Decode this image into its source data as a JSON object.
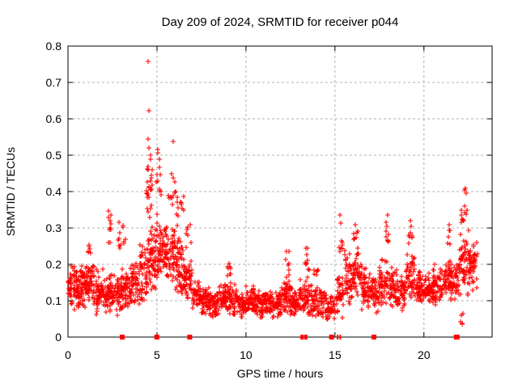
{
  "window": {
    "title": "Day 209 of 2024, SRMTID for receiver p044"
  },
  "chart_data": {
    "type": "scatter",
    "title": "Day 209 of 2024, SRMTID for receiver p044",
    "xlabel": "GPS time / hours",
    "ylabel": "SRMTID / TECUs",
    "xlim": [
      0,
      23.83
    ],
    "ylim": [
      0,
      0.8
    ],
    "x_ticks": [
      0,
      5,
      10,
      15,
      20
    ],
    "x_tick_labels": [
      "0",
      "5",
      "10",
      "15",
      "20"
    ],
    "y_ticks": [
      0,
      0.1,
      0.2,
      0.3,
      0.4,
      0.5,
      0.6,
      0.7,
      0.8
    ],
    "y_tick_labels": [
      "0",
      "0.1",
      "0.2",
      "0.3",
      "0.4",
      "0.5",
      "0.6",
      "0.7",
      "0.8"
    ],
    "grid": true,
    "legend_position": "none",
    "marker": "plus",
    "marker_color": "#ff0000",
    "axis_color": "#000000",
    "grid_color": "#b0b0b0",
    "background": "#ffffff",
    "series_name": "SRMTID",
    "dense_bands": [
      [
        0.0,
        0.5,
        0.07,
        0.2,
        60
      ],
      [
        0.5,
        1.0,
        0.06,
        0.2,
        60
      ],
      [
        1.0,
        1.5,
        0.07,
        0.22,
        60
      ],
      [
        1.5,
        2.0,
        0.06,
        0.19,
        55
      ],
      [
        2.0,
        2.5,
        0.06,
        0.18,
        55
      ],
      [
        2.5,
        3.0,
        0.05,
        0.17,
        50
      ],
      [
        3.0,
        3.5,
        0.07,
        0.2,
        55
      ],
      [
        3.5,
        4.0,
        0.08,
        0.22,
        55
      ],
      [
        4.0,
        4.5,
        0.09,
        0.26,
        55
      ],
      [
        4.5,
        5.0,
        0.1,
        0.35,
        60
      ],
      [
        5.0,
        5.5,
        0.13,
        0.34,
        60
      ],
      [
        5.5,
        6.0,
        0.14,
        0.32,
        60
      ],
      [
        6.0,
        6.5,
        0.1,
        0.28,
        55
      ],
      [
        6.5,
        7.0,
        0.09,
        0.22,
        50
      ],
      [
        7.0,
        7.5,
        0.07,
        0.16,
        50
      ],
      [
        7.5,
        8.0,
        0.06,
        0.14,
        50
      ],
      [
        8.0,
        8.5,
        0.05,
        0.13,
        50
      ],
      [
        8.5,
        9.0,
        0.06,
        0.15,
        50
      ],
      [
        9.0,
        9.5,
        0.05,
        0.16,
        50
      ],
      [
        9.5,
        10.0,
        0.05,
        0.13,
        50
      ],
      [
        10.0,
        10.5,
        0.06,
        0.15,
        50
      ],
      [
        10.5,
        11.0,
        0.05,
        0.13,
        50
      ],
      [
        11.0,
        11.5,
        0.06,
        0.14,
        50
      ],
      [
        11.5,
        12.0,
        0.05,
        0.13,
        50
      ],
      [
        12.0,
        12.5,
        0.06,
        0.17,
        50
      ],
      [
        12.5,
        13.0,
        0.05,
        0.14,
        50
      ],
      [
        13.0,
        13.5,
        0.06,
        0.17,
        50
      ],
      [
        13.5,
        14.0,
        0.05,
        0.16,
        45
      ],
      [
        14.0,
        14.5,
        0.05,
        0.14,
        45
      ],
      [
        14.5,
        15.0,
        0.04,
        0.12,
        40
      ],
      [
        15.0,
        15.5,
        0.05,
        0.18,
        45
      ],
      [
        15.5,
        16.0,
        0.08,
        0.24,
        50
      ],
      [
        16.0,
        16.5,
        0.08,
        0.26,
        50
      ],
      [
        16.5,
        17.0,
        0.07,
        0.2,
        50
      ],
      [
        17.0,
        17.5,
        0.06,
        0.17,
        50
      ],
      [
        17.5,
        18.0,
        0.08,
        0.22,
        50
      ],
      [
        18.0,
        18.5,
        0.08,
        0.2,
        50
      ],
      [
        18.5,
        19.0,
        0.07,
        0.18,
        50
      ],
      [
        19.0,
        19.5,
        0.1,
        0.24,
        50
      ],
      [
        19.5,
        20.0,
        0.08,
        0.19,
        50
      ],
      [
        20.0,
        20.5,
        0.08,
        0.18,
        50
      ],
      [
        20.5,
        21.0,
        0.08,
        0.2,
        50
      ],
      [
        21.0,
        21.5,
        0.1,
        0.22,
        50
      ],
      [
        21.5,
        22.0,
        0.08,
        0.22,
        45
      ],
      [
        22.0,
        22.5,
        0.1,
        0.3,
        50
      ],
      [
        22.5,
        23.0,
        0.12,
        0.28,
        50
      ],
      [
        1.1,
        1.35,
        0.22,
        0.27,
        6
      ],
      [
        2.25,
        2.45,
        0.22,
        0.36,
        10
      ],
      [
        2.8,
        3.3,
        0.23,
        0.33,
        12
      ],
      [
        4.35,
        4.75,
        0.3,
        0.47,
        14
      ],
      [
        4.4,
        4.75,
        0.36,
        0.52,
        10
      ],
      [
        4.9,
        5.3,
        0.35,
        0.52,
        10
      ],
      [
        5.6,
        6.2,
        0.33,
        0.45,
        12
      ],
      [
        6.1,
        6.5,
        0.29,
        0.4,
        9
      ],
      [
        6.6,
        6.95,
        0.24,
        0.33,
        7
      ],
      [
        8.85,
        9.15,
        0.16,
        0.22,
        8
      ],
      [
        12.2,
        12.45,
        0.16,
        0.24,
        8
      ],
      [
        13.3,
        13.6,
        0.17,
        0.25,
        10
      ],
      [
        13.8,
        14.1,
        0.15,
        0.21,
        6
      ],
      [
        15.2,
        15.45,
        0.2,
        0.33,
        9
      ],
      [
        16.0,
        16.3,
        0.26,
        0.31,
        6
      ],
      [
        17.8,
        18.05,
        0.24,
        0.33,
        8
      ],
      [
        19.1,
        19.35,
        0.24,
        0.32,
        8
      ],
      [
        21.3,
        21.5,
        0.24,
        0.31,
        5
      ],
      [
        22.1,
        22.45,
        0.27,
        0.37,
        10
      ],
      [
        22.0,
        22.2,
        0.03,
        0.07,
        5
      ]
    ],
    "outliers": [
      [
        4.52,
        0.758
      ],
      [
        4.57,
        0.622
      ],
      [
        4.5,
        0.545
      ],
      [
        5.92,
        0.538
      ],
      [
        4.55,
        0.52
      ],
      [
        5.05,
        0.515
      ],
      [
        4.62,
        0.5
      ],
      [
        5.15,
        0.49
      ],
      [
        4.48,
        0.47
      ],
      [
        4.68,
        0.445
      ],
      [
        5.8,
        0.45
      ],
      [
        6.05,
        0.4
      ],
      [
        6.15,
        0.385
      ],
      [
        22.33,
        0.41
      ],
      [
        22.28,
        0.405
      ],
      [
        22.38,
        0.395
      ],
      [
        22.3,
        0.36
      ],
      [
        15.3,
        0.335
      ],
      [
        17.95,
        0.335
      ],
      [
        16.15,
        0.31
      ],
      [
        19.22,
        0.32
      ],
      [
        21.42,
        0.31
      ]
    ],
    "event_marks": {
      "shape": "filled-square",
      "color": "#ff0000",
      "y": 0,
      "marks": [
        [
          3.05,
          6
        ],
        [
          4.99,
          6
        ],
        [
          6.84,
          6
        ],
        [
          13.15,
          4
        ],
        [
          13.36,
          4
        ],
        [
          14.81,
          6
        ],
        [
          15.15,
          2
        ],
        [
          15.3,
          2
        ],
        [
          17.19,
          6
        ],
        [
          21.84,
          7
        ]
      ]
    },
    "seed": 20240729
  }
}
